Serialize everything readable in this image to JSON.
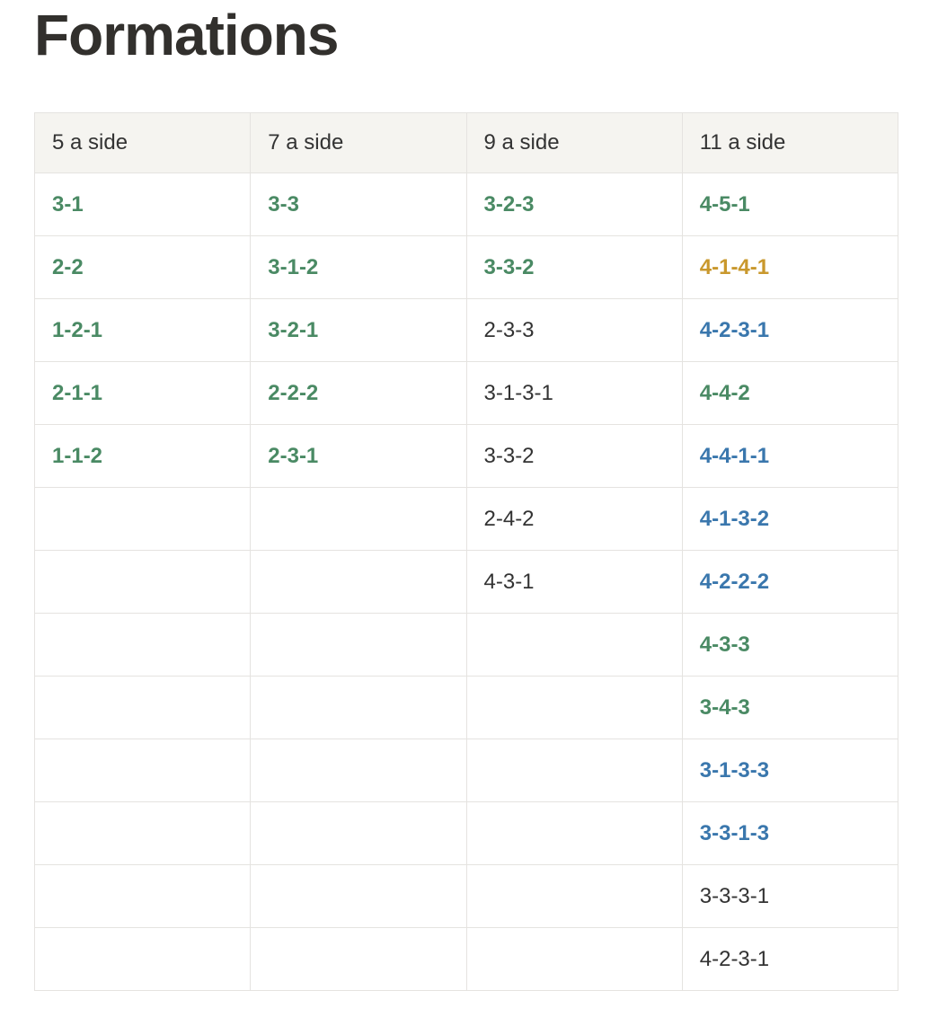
{
  "page": {
    "title": "Formations"
  },
  "colors": {
    "link_green": "#4a8a64",
    "link_blue": "#3a77ad",
    "link_orange": "#c9982d",
    "text_dark": "#333333",
    "header_background": "#f5f4f0",
    "border": "#e5e3e0"
  },
  "table": {
    "headers": [
      "5 a side",
      "7 a side",
      "9 a side",
      "11 a side"
    ],
    "columns": [
      {
        "header": "5 a side",
        "items": [
          {
            "label": "3-1",
            "style": "green"
          },
          {
            "label": "2-2",
            "style": "green"
          },
          {
            "label": "1-2-1",
            "style": "green"
          },
          {
            "label": "2-1-1",
            "style": "green"
          },
          {
            "label": "1-1-2",
            "style": "green"
          }
        ]
      },
      {
        "header": "7 a side",
        "items": [
          {
            "label": "3-3",
            "style": "green"
          },
          {
            "label": "3-1-2",
            "style": "green"
          },
          {
            "label": "3-2-1",
            "style": "green"
          },
          {
            "label": "2-2-2",
            "style": "green"
          },
          {
            "label": "2-3-1",
            "style": "green"
          }
        ]
      },
      {
        "header": "9 a side",
        "items": [
          {
            "label": "3-2-3",
            "style": "green"
          },
          {
            "label": "3-3-2",
            "style": "green"
          },
          {
            "label": "2-3-3",
            "style": "plain"
          },
          {
            "label": "3-1-3-1",
            "style": "plain"
          },
          {
            "label": "3-3-2",
            "style": "plain"
          },
          {
            "label": "2-4-2",
            "style": "plain"
          },
          {
            "label": "4-3-1",
            "style": "plain"
          }
        ]
      },
      {
        "header": "11 a side",
        "items": [
          {
            "label": "4-5-1",
            "style": "green"
          },
          {
            "label": "4-1-4-1",
            "style": "orange"
          },
          {
            "label": "4-2-3-1",
            "style": "blue"
          },
          {
            "label": "4-4-2",
            "style": "green"
          },
          {
            "label": "4-4-1-1",
            "style": "blue"
          },
          {
            "label": "4-1-3-2",
            "style": "blue"
          },
          {
            "label": "4-2-2-2",
            "style": "blue"
          },
          {
            "label": "4-3-3",
            "style": "green"
          },
          {
            "label": "3-4-3",
            "style": "green"
          },
          {
            "label": "3-1-3-3",
            "style": "blue"
          },
          {
            "label": "3-3-1-3",
            "style": "blue"
          },
          {
            "label": "3-3-3-1",
            "style": "plain"
          },
          {
            "label": "4-2-3-1",
            "style": "plain"
          }
        ]
      }
    ]
  }
}
